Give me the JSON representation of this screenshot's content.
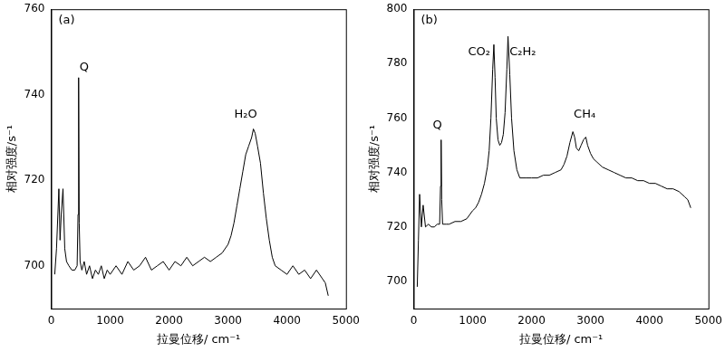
{
  "chart_data": [
    {
      "type": "line",
      "label": "(a)",
      "x_label": "拉曼位移/ cm⁻¹",
      "y_label": "相对强度/s⁻¹",
      "xlim": [
        0,
        5000
      ],
      "xticks": [
        0,
        1000,
        2000,
        3000,
        4000,
        5000
      ],
      "ylim": [
        690,
        760
      ],
      "yticks": [
        700,
        720,
        740,
        760
      ],
      "grid": false,
      "annotations": [
        {
          "text": "Q",
          "x": 560,
          "y": 745
        },
        {
          "text": "H₂O",
          "x": 3300,
          "y": 734
        }
      ],
      "series": [
        {
          "color": "#000000",
          "line_style": "solid",
          "x": [
            60,
            90,
            130,
            150,
            170,
            200,
            230,
            260,
            300,
            350,
            400,
            440,
            455,
            465,
            475,
            490,
            520,
            560,
            600,
            650,
            700,
            750,
            800,
            850,
            900,
            950,
            1000,
            1100,
            1200,
            1300,
            1400,
            1500,
            1600,
            1700,
            1800,
            1900,
            2000,
            2100,
            2200,
            2300,
            2400,
            2500,
            2600,
            2700,
            2800,
            2900,
            3000,
            3050,
            3100,
            3150,
            3200,
            3250,
            3300,
            3350,
            3400,
            3430,
            3460,
            3500,
            3550,
            3600,
            3650,
            3700,
            3750,
            3800,
            3900,
            4000,
            4100,
            4200,
            4300,
            4400,
            4500,
            4600,
            4650,
            4700
          ],
          "values": [
            698,
            704,
            718,
            706,
            712,
            718,
            704,
            701,
            700,
            699,
            699,
            700,
            712,
            744,
            710,
            701,
            699,
            701,
            698,
            700,
            697,
            699,
            698,
            700,
            697,
            699,
            698,
            700,
            698,
            701,
            699,
            700,
            702,
            699,
            700,
            701,
            699,
            701,
            700,
            702,
            700,
            701,
            702,
            701,
            702,
            703,
            705,
            707,
            710,
            714,
            718,
            722,
            726,
            728,
            730,
            732,
            731,
            728,
            724,
            717,
            711,
            706,
            702,
            700,
            699,
            698,
            700,
            698,
            699,
            697,
            699,
            697,
            696,
            693
          ]
        }
      ]
    },
    {
      "type": "line",
      "label": "(b)",
      "x_label": "拉曼位移/ cm⁻¹",
      "y_label": "相对强度/s⁻¹",
      "xlim": [
        0,
        5000
      ],
      "xticks": [
        0,
        1000,
        2000,
        3000,
        4000,
        5000
      ],
      "ylim": [
        690,
        800
      ],
      "yticks": [
        700,
        720,
        740,
        760,
        780,
        800
      ],
      "grid": false,
      "annotations": [
        {
          "text": "Q",
          "x": 400,
          "y": 755
        },
        {
          "text": "CO₂",
          "x": 1110,
          "y": 782
        },
        {
          "text": "C₂H₂",
          "x": 1850,
          "y": 782
        },
        {
          "text": "CH₄",
          "x": 2900,
          "y": 759
        }
      ],
      "series": [
        {
          "color": "#000000",
          "line_style": "solid",
          "x": [
            60,
            80,
            100,
            130,
            160,
            200,
            250,
            300,
            350,
            400,
            440,
            455,
            465,
            475,
            490,
            550,
            600,
            700,
            800,
            900,
            1000,
            1050,
            1100,
            1150,
            1200,
            1250,
            1280,
            1310,
            1340,
            1360,
            1380,
            1400,
            1430,
            1460,
            1490,
            1520,
            1550,
            1580,
            1600,
            1630,
            1660,
            1700,
            1750,
            1800,
            1900,
            2000,
            2100,
            2200,
            2300,
            2400,
            2500,
            2550,
            2600,
            2650,
            2700,
            2730,
            2760,
            2800,
            2840,
            2880,
            2920,
            2950,
            3000,
            3050,
            3100,
            3200,
            3300,
            3400,
            3500,
            3600,
            3700,
            3800,
            3900,
            4000,
            4100,
            4200,
            4300,
            4400,
            4500,
            4600,
            4650,
            4700
          ],
          "values": [
            698,
            715,
            732,
            720,
            728,
            720,
            721,
            720,
            720,
            721,
            721,
            735,
            752,
            730,
            721,
            721,
            721,
            722,
            722,
            723,
            726,
            727,
            729,
            732,
            736,
            742,
            748,
            760,
            778,
            787,
            775,
            760,
            752,
            750,
            751,
            754,
            762,
            778,
            790,
            776,
            760,
            748,
            741,
            738,
            738,
            738,
            738,
            739,
            739,
            740,
            741,
            743,
            746,
            751,
            755,
            753,
            749,
            748,
            750,
            752,
            753,
            750,
            747,
            745,
            744,
            742,
            741,
            740,
            739,
            738,
            738,
            737,
            737,
            736,
            736,
            735,
            734,
            734,
            733,
            731,
            730,
            727
          ]
        }
      ]
    }
  ]
}
